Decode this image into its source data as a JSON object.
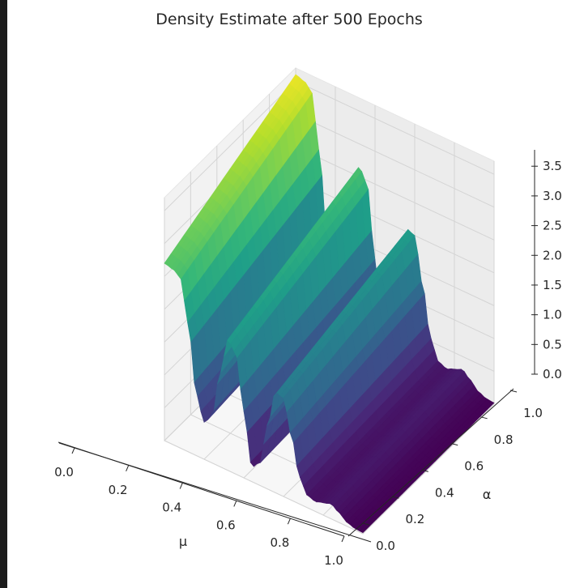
{
  "chart_data": {
    "type": "surface",
    "title": "Density Estimate after 500 Epochs",
    "xlabel": "μ",
    "ylabel": "α",
    "zlabel": "",
    "colormap": "viridis",
    "xlim": [
      0,
      1
    ],
    "ylim": [
      0,
      1
    ],
    "zlim": [
      0,
      3.7
    ],
    "x_ticks": [
      "0.0",
      "0.2",
      "0.4",
      "0.6",
      "0.8",
      "1.0"
    ],
    "y_ticks": [
      "0.0",
      "0.2",
      "0.4",
      "0.6",
      "0.8",
      "1.0"
    ],
    "z_ticks": [
      "0.0",
      "0.5",
      "1.0",
      "1.5",
      "2.0",
      "2.5",
      "3.0",
      "3.5"
    ],
    "grid": true,
    "profile": {
      "mu": [
        0.0,
        0.05,
        0.08,
        0.12,
        0.16,
        0.2,
        0.24,
        0.28,
        0.32,
        0.36,
        0.4,
        0.44,
        0.48,
        0.52,
        0.56,
        0.6,
        0.64,
        0.68,
        0.72,
        0.76,
        0.8,
        0.84,
        0.88,
        0.92,
        0.96,
        1.0
      ],
      "density": [
        3.6,
        3.55,
        3.45,
        2.6,
        1.25,
        0.75,
        0.95,
        1.9,
        2.65,
        2.45,
        1.35,
        0.3,
        0.45,
        1.3,
        2.05,
        2.0,
        1.3,
        0.55,
        0.25,
        0.2,
        0.25,
        0.3,
        0.2,
        0.08,
        0.03,
        0.02
      ]
    },
    "alpha_decay": 0.25
  }
}
